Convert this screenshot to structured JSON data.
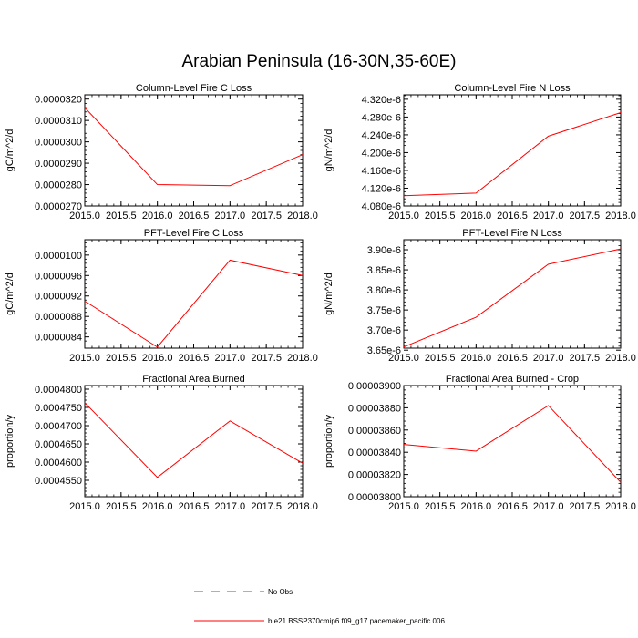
{
  "figure_title": "Arabian Peninsula (16-30N,35-60E)",
  "legend": [
    {
      "label": "No Obs",
      "style": "dashed",
      "color": "#5a5aa0"
    },
    {
      "label": "b.e21.BSSP370cmip6.f09_g17.pacemaker_pacific.006",
      "style": "solid",
      "color": "#ff0000"
    }
  ],
  "line_color": "#ff0000",
  "chart_data": [
    {
      "type": "line",
      "title": "Column-Level Fire C Loss",
      "ylabel": "gC/m^2/d",
      "x": [
        2015.0,
        2016.0,
        2017.0,
        2018.0
      ],
      "series": [
        {
          "name": "b.e21.BSSP370cmip6.f09_g17.pacemaker_pacific.006",
          "values": [
            3.16e-05,
            2.8e-05,
            2.795e-05,
            2.94e-05
          ]
        }
      ],
      "xlim": [
        2015.0,
        2018.0
      ],
      "ylim": [
        2.7e-05,
        3.22e-05
      ],
      "xticks": [
        2015.0,
        2015.5,
        2016.0,
        2016.5,
        2017.0,
        2017.5,
        2018.0
      ],
      "xtick_labels": [
        "2015.0",
        "2015.5",
        "2016.0",
        "2016.5",
        "2017.0",
        "2017.5",
        "2018.0"
      ],
      "yticks": [
        2.7e-05,
        2.8e-05,
        2.9e-05,
        3e-05,
        3.1e-05,
        3.2e-05
      ],
      "ytick_labels": [
        "0.0000270",
        "0.0000280",
        "0.0000290",
        "0.0000300",
        "0.0000310",
        "0.0000320"
      ]
    },
    {
      "type": "line",
      "title": "Column-Level Fire N Loss",
      "ylabel": "gN/m^2/d",
      "x": [
        2015.0,
        2016.0,
        2017.0,
        2018.0
      ],
      "series": [
        {
          "name": "b.e21.BSSP370cmip6.f09_g17.pacemaker_pacific.006",
          "values": [
            4.103e-06,
            4.109e-06,
            4.237e-06,
            4.29e-06
          ]
        }
      ],
      "xlim": [
        2015.0,
        2018.0
      ],
      "ylim": [
        4.08e-06,
        4.33e-06
      ],
      "xticks": [
        2015.0,
        2015.5,
        2016.0,
        2016.5,
        2017.0,
        2017.5,
        2018.0
      ],
      "xtick_labels": [
        "2015.0",
        "2015.5",
        "2016.0",
        "2016.5",
        "2017.0",
        "2017.5",
        "2018.0"
      ],
      "yticks": [
        4.08e-06,
        4.12e-06,
        4.16e-06,
        4.2e-06,
        4.24e-06,
        4.28e-06,
        4.32e-06
      ],
      "ytick_labels": [
        "4.080e-6",
        "4.120e-6",
        "4.160e-6",
        "4.200e-6",
        "4.240e-6",
        "4.280e-6",
        "4.320e-6"
      ]
    },
    {
      "type": "line",
      "title": "PFT-Level Fire C Loss",
      "ylabel": "gC/m^2/d",
      "x": [
        2015.0,
        2016.0,
        2017.0,
        2018.0
      ],
      "series": [
        {
          "name": "b.e21.BSSP370cmip6.f09_g17.pacemaker_pacific.006",
          "values": [
            9.1e-06,
            8.2e-06,
            9.9e-06,
            9.6e-06
          ]
        }
      ],
      "xlim": [
        2015.0,
        2018.0
      ],
      "ylim": [
        8.18e-06,
        1.03e-05
      ],
      "xticks": [
        2015.0,
        2015.5,
        2016.0,
        2016.5,
        2017.0,
        2017.5,
        2018.0
      ],
      "xtick_labels": [
        "2015.0",
        "2015.5",
        "2016.0",
        "2016.5",
        "2017.0",
        "2017.5",
        "2018.0"
      ],
      "yticks": [
        8.4e-06,
        8.8e-06,
        9.2e-06,
        9.6e-06,
        1e-05
      ],
      "ytick_labels": [
        "0.0000084",
        "0.0000088",
        "0.0000092",
        "0.0000096",
        "0.0000100"
      ]
    },
    {
      "type": "line",
      "title": "PFT-Level Fire N Loss",
      "ylabel": "gN/m^2/d",
      "x": [
        2015.0,
        2016.0,
        2017.0,
        2018.0
      ],
      "series": [
        {
          "name": "b.e21.BSSP370cmip6.f09_g17.pacemaker_pacific.006",
          "values": [
            3.658e-06,
            3.732e-06,
            3.864e-06,
            3.902e-06
          ]
        }
      ],
      "xlim": [
        2015.0,
        2018.0
      ],
      "ylim": [
        3.655e-06,
        3.925e-06
      ],
      "xticks": [
        2015.0,
        2015.5,
        2016.0,
        2016.5,
        2017.0,
        2017.5,
        2018.0
      ],
      "xtick_labels": [
        "2015.0",
        "2015.5",
        "2016.0",
        "2016.5",
        "2017.0",
        "2017.5",
        "2018.0"
      ],
      "yticks": [
        3.65e-06,
        3.7e-06,
        3.75e-06,
        3.8e-06,
        3.85e-06,
        3.9e-06
      ],
      "ytick_labels": [
        "3.65e-6",
        "3.70e-6",
        "3.75e-6",
        "3.80e-6",
        "3.85e-6",
        "3.90e-6"
      ]
    },
    {
      "type": "line",
      "title": "Fractional Area Burned",
      "ylabel": "proportion/y",
      "x": [
        2015.0,
        2016.0,
        2017.0,
        2018.0
      ],
      "series": [
        {
          "name": "b.e21.BSSP370cmip6.f09_g17.pacemaker_pacific.006",
          "values": [
            0.0004763,
            0.0004558,
            0.0004713,
            0.0004597
          ]
        }
      ],
      "xlim": [
        2015.0,
        2018.0
      ],
      "ylim": [
        0.0004505,
        0.000481
      ],
      "xticks": [
        2015.0,
        2015.5,
        2016.0,
        2016.5,
        2017.0,
        2017.5,
        2018.0
      ],
      "xtick_labels": [
        "2015.0",
        "2015.5",
        "2016.0",
        "2016.5",
        "2017.0",
        "2017.5",
        "2018.0"
      ],
      "yticks": [
        0.000455,
        0.00046,
        0.000465,
        0.00047,
        0.000475,
        0.00048
      ],
      "ytick_labels": [
        "0.0004550",
        "0.0004600",
        "0.0004650",
        "0.0004700",
        "0.0004750",
        "0.0004800"
      ]
    },
    {
      "type": "line",
      "title": "Fractional Area Burned - Crop",
      "ylabel": "proportion/y",
      "x": [
        2015.0,
        2016.0,
        2017.0,
        2018.0
      ],
      "series": [
        {
          "name": "b.e21.BSSP370cmip6.f09_g17.pacemaker_pacific.006",
          "values": [
            3.847e-05,
            3.841e-05,
            3.882e-05,
            3.813e-05
          ]
        }
      ],
      "xlim": [
        2015.0,
        2018.0
      ],
      "ylim": [
        3.8e-05,
        3.9e-05
      ],
      "xticks": [
        2015.0,
        2015.5,
        2016.0,
        2016.5,
        2017.0,
        2017.5,
        2018.0
      ],
      "xtick_labels": [
        "2015.0",
        "2015.5",
        "2016.0",
        "2016.5",
        "2017.0",
        "2017.5",
        "2018.0"
      ],
      "yticks": [
        3.8e-05,
        3.82e-05,
        3.84e-05,
        3.86e-05,
        3.88e-05,
        3.9e-05
      ],
      "ytick_labels": [
        "0.00003800",
        "0.00003820",
        "0.00003840",
        "0.00003860",
        "0.00003880",
        "0.00003900"
      ]
    }
  ]
}
